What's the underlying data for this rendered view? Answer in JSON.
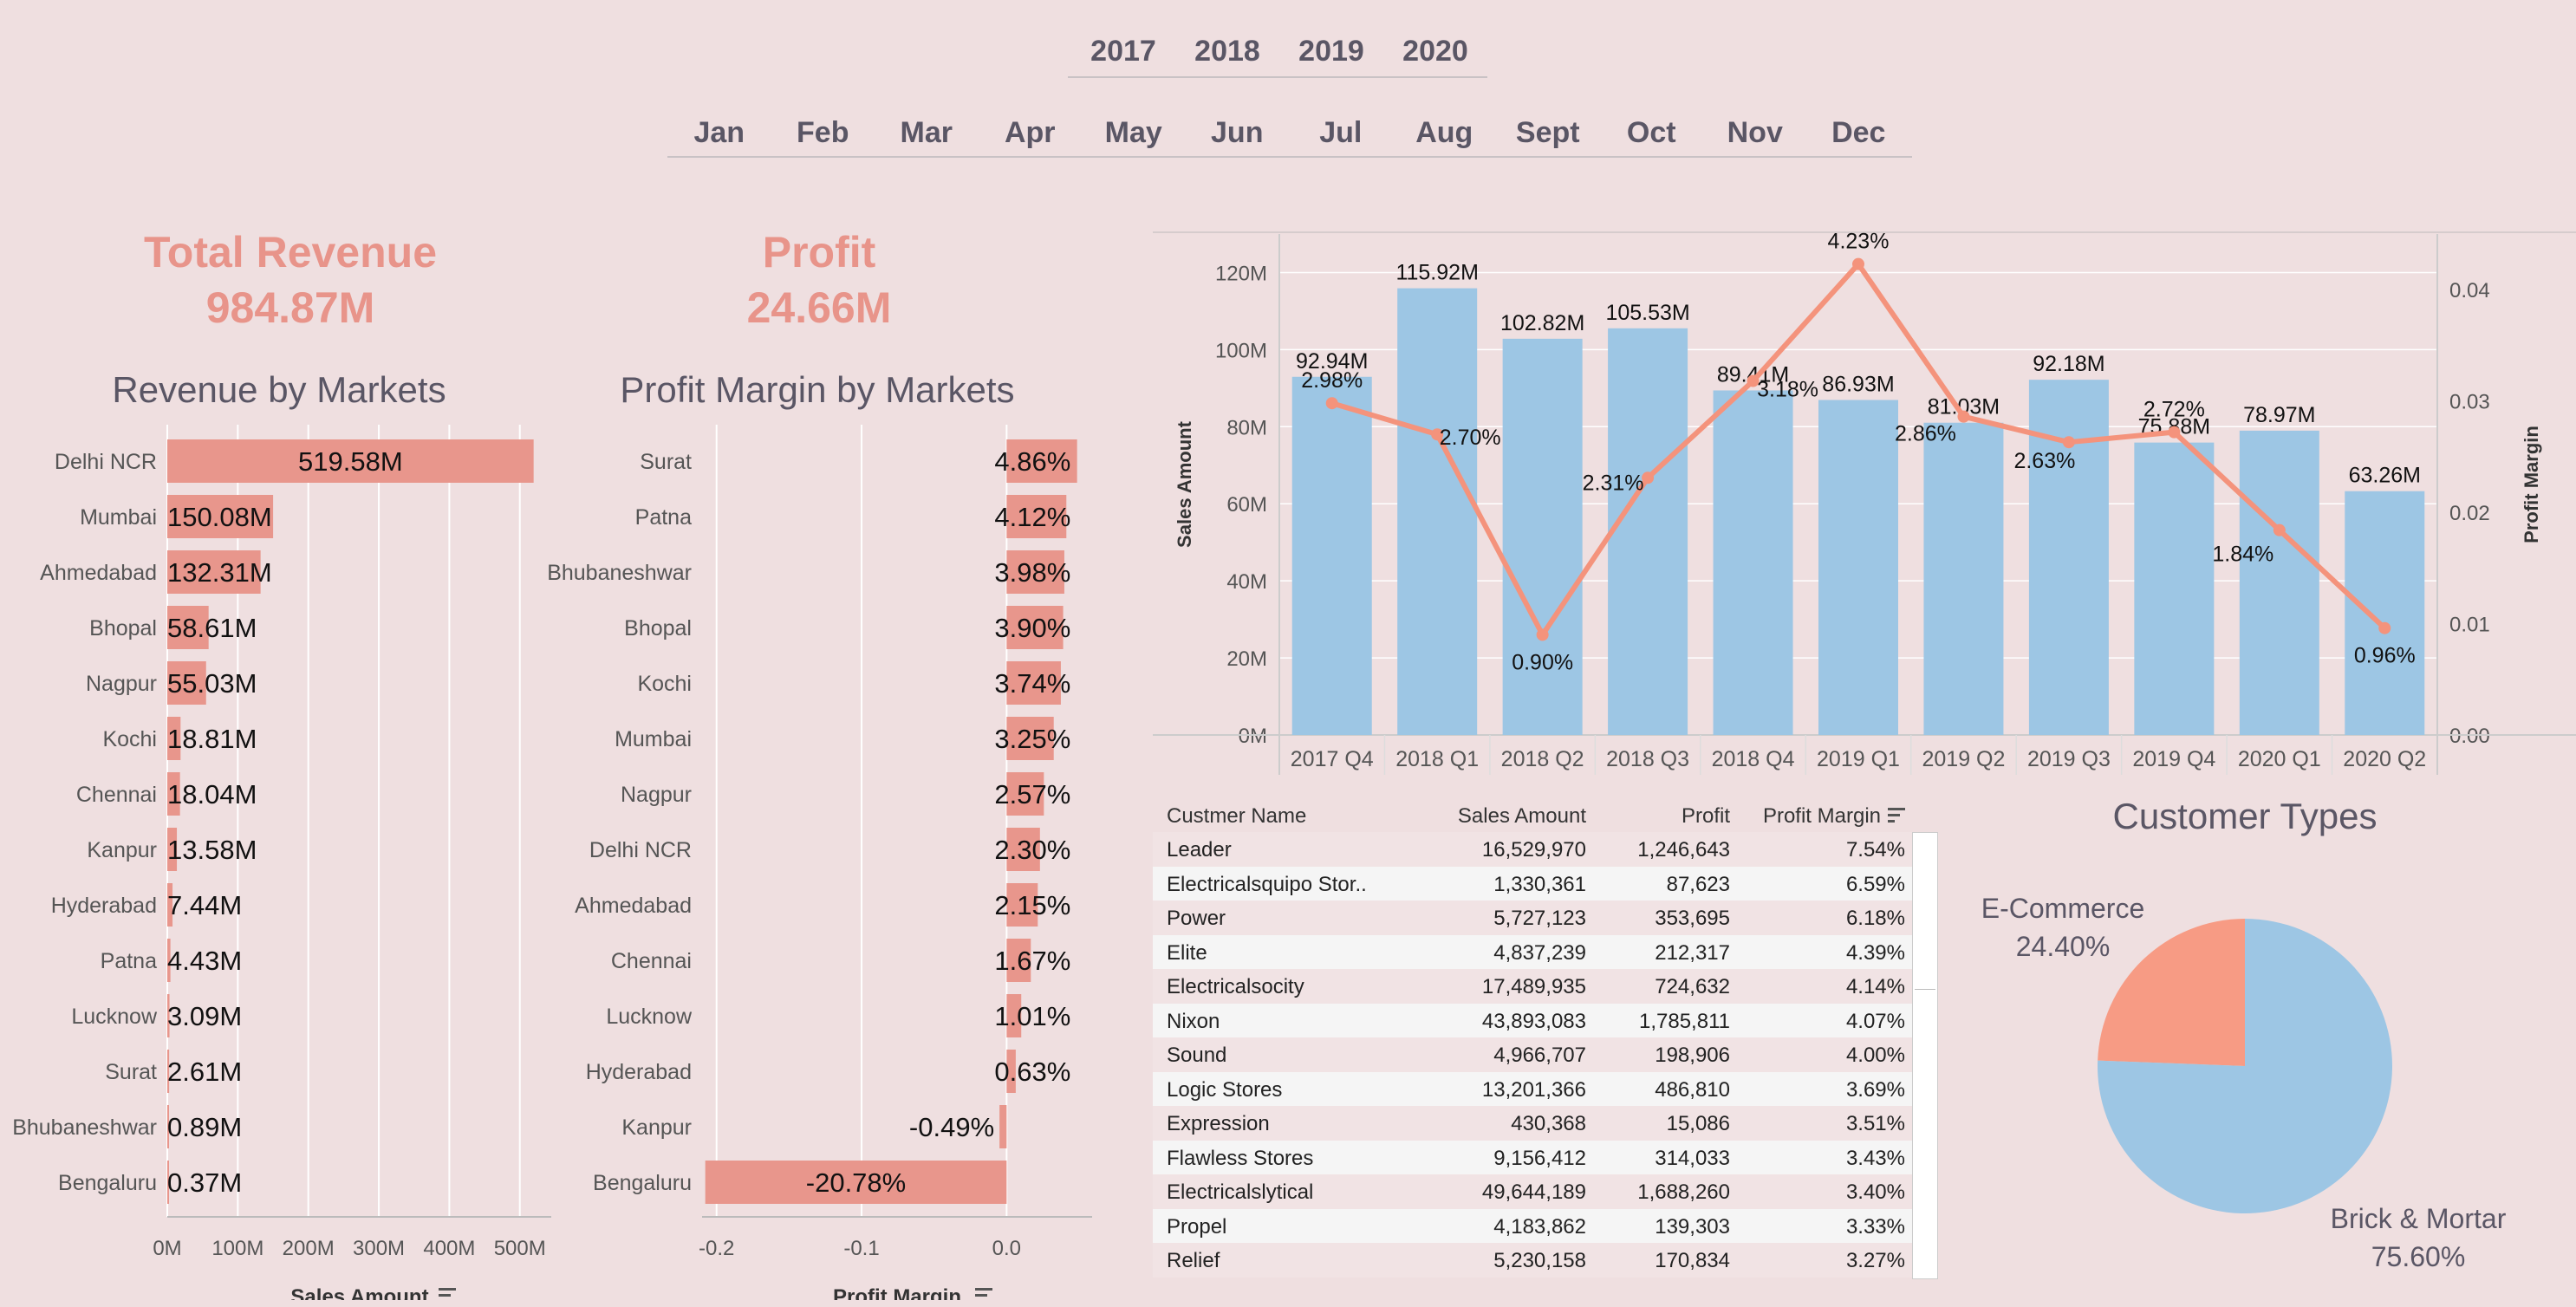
{
  "filters": {
    "years": [
      "2017",
      "2018",
      "2019",
      "2020"
    ],
    "months": [
      "Jan",
      "Feb",
      "Mar",
      "Apr",
      "May",
      "Jun",
      "Jul",
      "Aug",
      "Sept",
      "Oct",
      "Nov",
      "Dec"
    ]
  },
  "kpis": {
    "revenue": {
      "label": "Total Revenue",
      "value": "984.87M"
    },
    "profit": {
      "label": "Profit",
      "value": "24.66M"
    }
  },
  "colors": {
    "background": "#efdfe0",
    "bar_red": "#e8968c",
    "bar_blue": "#9dc6e4",
    "line": "#f4937c",
    "pie_orange": "#f79b84",
    "pie_blue": "#9dc6e4"
  },
  "chart_data": [
    {
      "type": "bar",
      "title": "Revenue by Markets",
      "xlabel": "Sales Amount",
      "categories": [
        "Delhi NCR",
        "Mumbai",
        "Ahmedabad",
        "Bhopal",
        "Nagpur",
        "Kochi",
        "Chennai",
        "Kanpur",
        "Hyderabad",
        "Patna",
        "Lucknow",
        "Surat",
        "Bhubaneshwar",
        "Bengaluru"
      ],
      "values": [
        519.58,
        150.08,
        132.31,
        58.61,
        55.03,
        18.81,
        18.04,
        13.58,
        7.44,
        4.43,
        3.09,
        2.61,
        0.89,
        0.37
      ],
      "value_labels": [
        "519.58M",
        "150.08M",
        "132.31M",
        "58.61M",
        "55.03M",
        "18.81M",
        "18.04M",
        "13.58M",
        "7.44M",
        "4.43M",
        "3.09M",
        "2.61M",
        "0.89M",
        "0.37M"
      ],
      "ticks": [
        "0M",
        "100M",
        "200M",
        "300M",
        "400M",
        "500M"
      ],
      "xlim": [
        0,
        520
      ]
    },
    {
      "type": "bar",
      "title": "Profit Margin by Markets",
      "xlabel": "Profit Margin",
      "categories": [
        "Surat",
        "Patna",
        "Bhubaneshwar",
        "Bhopal",
        "Kochi",
        "Mumbai",
        "Nagpur",
        "Delhi NCR",
        "Ahmedabad",
        "Chennai",
        "Lucknow",
        "Hyderabad",
        "Kanpur",
        "Bengaluru"
      ],
      "values": [
        0.0486,
        0.0412,
        0.0398,
        0.039,
        0.0374,
        0.0325,
        0.0257,
        0.023,
        0.0215,
        0.0167,
        0.0101,
        0.0063,
        -0.0049,
        -0.2078
      ],
      "value_labels": [
        "4.86%",
        "4.12%",
        "3.98%",
        "3.90%",
        "3.74%",
        "3.25%",
        "2.57%",
        "2.30%",
        "2.15%",
        "1.67%",
        "1.01%",
        "0.63%",
        "-0.49%",
        "-20.78%"
      ],
      "ticks": [
        "-0.2",
        "-0.1",
        "0.0"
      ],
      "xlim": [
        -0.21,
        0.05
      ]
    },
    {
      "type": "bar+line",
      "ylabel": "Sales Amount",
      "y2label": "Profit Margin",
      "categories": [
        "2017 Q4",
        "2018 Q1",
        "2018 Q2",
        "2018 Q3",
        "2018 Q4",
        "2019 Q1",
        "2019 Q2",
        "2019 Q3",
        "2019 Q4",
        "2020 Q1",
        "2020 Q2"
      ],
      "bar_values": [
        92.94,
        115.92,
        102.82,
        105.53,
        89.41,
        86.93,
        81.03,
        92.18,
        75.88,
        78.97,
        63.26
      ],
      "bar_labels": [
        "92.94M",
        "115.92M",
        "102.82M",
        "105.53M",
        "89.41M",
        "86.93M",
        "81.03M",
        "92.18M",
        "75.88M",
        "78.97M",
        "63.26M"
      ],
      "line_values": [
        0.0298,
        0.027,
        0.009,
        0.0231,
        0.0318,
        0.0423,
        0.0286,
        0.0263,
        0.0272,
        0.0184,
        0.0096
      ],
      "line_labels": [
        "2.98%",
        "2.70%",
        "0.90%",
        "2.31%",
        "3.18%",
        "4.23%",
        "2.86%",
        "2.63%",
        "2.72%",
        "1.84%",
        "0.96%"
      ],
      "y_ticks": [
        "0M",
        "20M",
        "40M",
        "60M",
        "80M",
        "100M",
        "120M"
      ],
      "y2_ticks": [
        "0.00",
        "0.01",
        "0.02",
        "0.03",
        "0.04"
      ],
      "ylim": [
        0,
        130
      ],
      "y2lim": [
        0,
        0.045
      ]
    },
    {
      "type": "pie",
      "title": "Customer Types",
      "slices": [
        {
          "name": "E-Commerce",
          "value": 24.4,
          "label": "24.40%"
        },
        {
          "name": "Brick & Mortar",
          "value": 75.6,
          "label": "75.60%"
        }
      ]
    }
  ],
  "table": {
    "headers": [
      "Custmer Name",
      "Sales Amount",
      "Profit",
      "Profit Margin"
    ],
    "rows": [
      [
        "Leader",
        "16,529,970",
        "1,246,643",
        "7.54%"
      ],
      [
        "Electricalsquipo Stor..",
        "1,330,361",
        "87,623",
        "6.59%"
      ],
      [
        "Power",
        "5,727,123",
        "353,695",
        "6.18%"
      ],
      [
        "Elite",
        "4,837,239",
        "212,317",
        "4.39%"
      ],
      [
        "Electricalsocity",
        "17,489,935",
        "724,632",
        "4.14%"
      ],
      [
        "Nixon",
        "43,893,083",
        "1,785,811",
        "4.07%"
      ],
      [
        "Sound",
        "4,966,707",
        "198,906",
        "4.00%"
      ],
      [
        "Logic Stores",
        "13,201,366",
        "486,810",
        "3.69%"
      ],
      [
        "Expression",
        "430,368",
        "15,086",
        "3.51%"
      ],
      [
        "Flawless Stores",
        "9,156,412",
        "314,033",
        "3.43%"
      ],
      [
        "Electricalslytical",
        "49,644,189",
        "1,688,260",
        "3.40%"
      ],
      [
        "Propel",
        "4,183,862",
        "139,303",
        "3.33%"
      ],
      [
        "Relief",
        "5,230,158",
        "170,834",
        "3.27%"
      ]
    ]
  }
}
